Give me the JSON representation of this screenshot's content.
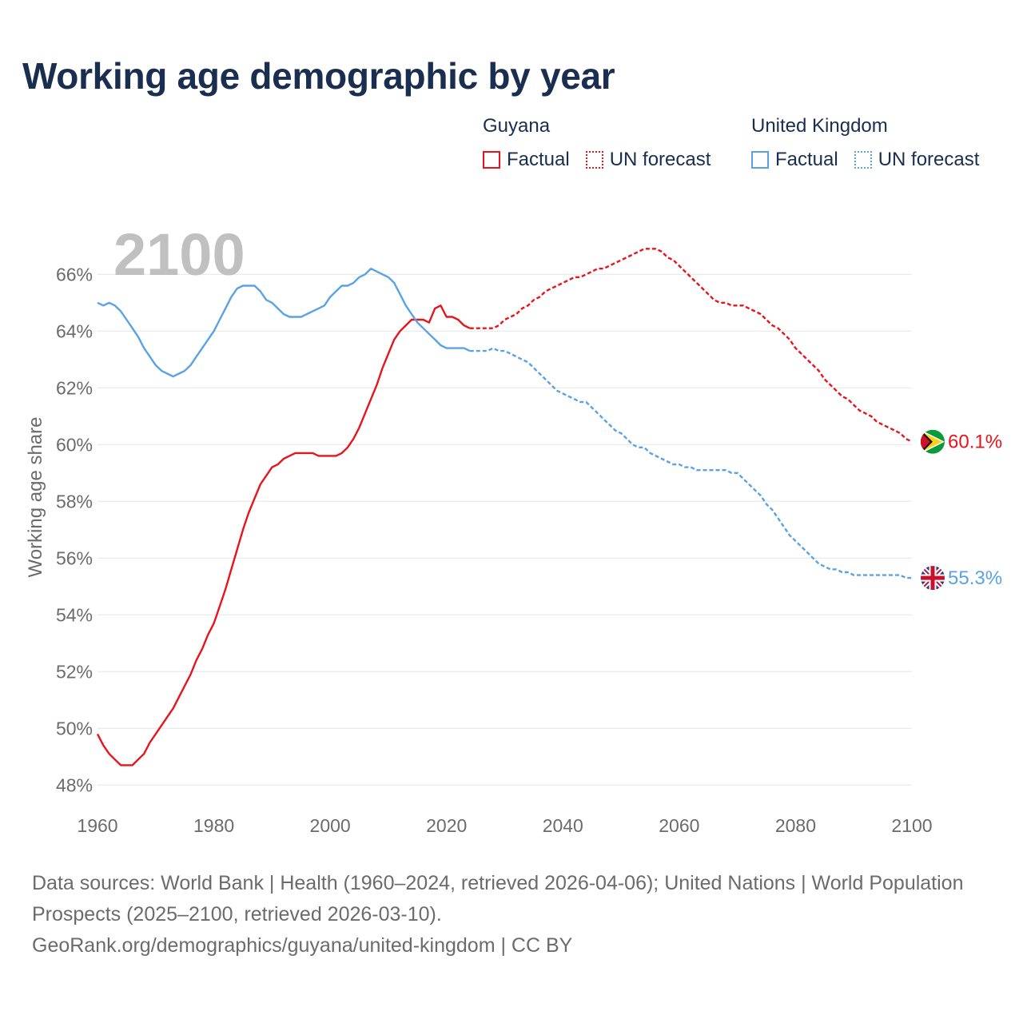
{
  "title": "Working age demographic by year",
  "legend": {
    "groups": [
      {
        "name": "Guyana",
        "factual_label": "Factual",
        "forecast_label": "UN forecast",
        "color": "#e8141c"
      },
      {
        "name": "United Kingdom",
        "factual_label": "Factual",
        "forecast_label": "UN forecast",
        "color": "#5aa3e3"
      }
    ]
  },
  "chart_data": {
    "type": "line",
    "ylabel": "Working age share",
    "xlabel": "",
    "year_overlay": "2100",
    "xlim": [
      1960,
      2100
    ],
    "ylim": [
      47.5,
      67.5
    ],
    "x_ticks": [
      "1960",
      "1980",
      "2000",
      "2020",
      "2040",
      "2060",
      "2080",
      "2100"
    ],
    "y_ticks": [
      "48%",
      "50%",
      "52%",
      "54%",
      "56%",
      "58%",
      "60%",
      "62%",
      "64%",
      "66%"
    ],
    "grid": true,
    "factual_end_year": 2024,
    "series": [
      {
        "name": "Guyana",
        "color": "#e8141c",
        "end_label": "60.1%",
        "flag": "guyana-flag-icon",
        "points": [
          [
            1960,
            49.8
          ],
          [
            1961,
            49.4
          ],
          [
            1962,
            49.1
          ],
          [
            1963,
            48.9
          ],
          [
            1964,
            48.7
          ],
          [
            1965,
            48.7
          ],
          [
            1966,
            48.7
          ],
          [
            1967,
            48.9
          ],
          [
            1968,
            49.1
          ],
          [
            1969,
            49.5
          ],
          [
            1970,
            49.8
          ],
          [
            1971,
            50.1
          ],
          [
            1972,
            50.4
          ],
          [
            1973,
            50.7
          ],
          [
            1974,
            51.1
          ],
          [
            1975,
            51.5
          ],
          [
            1976,
            51.9
          ],
          [
            1977,
            52.4
          ],
          [
            1978,
            52.8
          ],
          [
            1979,
            53.3
          ],
          [
            1980,
            53.7
          ],
          [
            1981,
            54.3
          ],
          [
            1982,
            54.9
          ],
          [
            1983,
            55.6
          ],
          [
            1984,
            56.3
          ],
          [
            1985,
            57.0
          ],
          [
            1986,
            57.6
          ],
          [
            1987,
            58.1
          ],
          [
            1988,
            58.6
          ],
          [
            1989,
            58.9
          ],
          [
            1990,
            59.2
          ],
          [
            1991,
            59.3
          ],
          [
            1992,
            59.5
          ],
          [
            1993,
            59.6
          ],
          [
            1994,
            59.7
          ],
          [
            1995,
            59.7
          ],
          [
            1996,
            59.7
          ],
          [
            1997,
            59.7
          ],
          [
            1998,
            59.6
          ],
          [
            1999,
            59.6
          ],
          [
            2000,
            59.6
          ],
          [
            2001,
            59.6
          ],
          [
            2002,
            59.7
          ],
          [
            2003,
            59.9
          ],
          [
            2004,
            60.2
          ],
          [
            2005,
            60.6
          ],
          [
            2006,
            61.1
          ],
          [
            2007,
            61.6
          ],
          [
            2008,
            62.1
          ],
          [
            2009,
            62.7
          ],
          [
            2010,
            63.2
          ],
          [
            2011,
            63.7
          ],
          [
            2012,
            64.0
          ],
          [
            2013,
            64.2
          ],
          [
            2014,
            64.4
          ],
          [
            2015,
            64.4
          ],
          [
            2016,
            64.4
          ],
          [
            2017,
            64.3
          ],
          [
            2018,
            64.8
          ],
          [
            2019,
            64.9
          ],
          [
            2020,
            64.5
          ],
          [
            2021,
            64.5
          ],
          [
            2022,
            64.4
          ],
          [
            2023,
            64.2
          ],
          [
            2024,
            64.1
          ],
          [
            2025,
            64.1
          ],
          [
            2026,
            64.1
          ],
          [
            2027,
            64.1
          ],
          [
            2028,
            64.1
          ],
          [
            2029,
            64.2
          ],
          [
            2030,
            64.4
          ],
          [
            2031,
            64.5
          ],
          [
            2032,
            64.6
          ],
          [
            2033,
            64.8
          ],
          [
            2034,
            64.9
          ],
          [
            2035,
            65.1
          ],
          [
            2036,
            65.2
          ],
          [
            2037,
            65.4
          ],
          [
            2038,
            65.5
          ],
          [
            2039,
            65.6
          ],
          [
            2040,
            65.7
          ],
          [
            2041,
            65.8
          ],
          [
            2042,
            65.9
          ],
          [
            2043,
            65.9
          ],
          [
            2044,
            66.0
          ],
          [
            2045,
            66.1
          ],
          [
            2046,
            66.2
          ],
          [
            2047,
            66.2
          ],
          [
            2048,
            66.3
          ],
          [
            2049,
            66.4
          ],
          [
            2050,
            66.5
          ],
          [
            2051,
            66.6
          ],
          [
            2052,
            66.7
          ],
          [
            2053,
            66.8
          ],
          [
            2054,
            66.9
          ],
          [
            2055,
            66.9
          ],
          [
            2056,
            66.9
          ],
          [
            2057,
            66.8
          ],
          [
            2058,
            66.6
          ],
          [
            2059,
            66.5
          ],
          [
            2060,
            66.3
          ],
          [
            2061,
            66.1
          ],
          [
            2062,
            65.9
          ],
          [
            2063,
            65.7
          ],
          [
            2064,
            65.5
          ],
          [
            2065,
            65.3
          ],
          [
            2066,
            65.1
          ],
          [
            2067,
            65.0
          ],
          [
            2068,
            65.0
          ],
          [
            2069,
            64.9
          ],
          [
            2070,
            64.9
          ],
          [
            2071,
            64.9
          ],
          [
            2072,
            64.8
          ],
          [
            2073,
            64.7
          ],
          [
            2074,
            64.6
          ],
          [
            2075,
            64.4
          ],
          [
            2076,
            64.2
          ],
          [
            2077,
            64.1
          ],
          [
            2078,
            63.9
          ],
          [
            2079,
            63.7
          ],
          [
            2080,
            63.4
          ],
          [
            2081,
            63.2
          ],
          [
            2082,
            63.0
          ],
          [
            2083,
            62.8
          ],
          [
            2084,
            62.6
          ],
          [
            2085,
            62.3
          ],
          [
            2086,
            62.1
          ],
          [
            2087,
            61.9
          ],
          [
            2088,
            61.7
          ],
          [
            2089,
            61.6
          ],
          [
            2090,
            61.4
          ],
          [
            2091,
            61.2
          ],
          [
            2092,
            61.1
          ],
          [
            2093,
            61.0
          ],
          [
            2094,
            60.8
          ],
          [
            2095,
            60.7
          ],
          [
            2096,
            60.6
          ],
          [
            2097,
            60.5
          ],
          [
            2098,
            60.4
          ],
          [
            2099,
            60.2
          ],
          [
            2100,
            60.1
          ]
        ]
      },
      {
        "name": "United Kingdom",
        "color": "#5aa3e3",
        "end_label": "55.3%",
        "flag": "uk-flag-icon",
        "points": [
          [
            1960,
            65.0
          ],
          [
            1961,
            64.9
          ],
          [
            1962,
            65.0
          ],
          [
            1963,
            64.9
          ],
          [
            1964,
            64.7
          ],
          [
            1965,
            64.4
          ],
          [
            1966,
            64.1
          ],
          [
            1967,
            63.8
          ],
          [
            1968,
            63.4
          ],
          [
            1969,
            63.1
          ],
          [
            1970,
            62.8
          ],
          [
            1971,
            62.6
          ],
          [
            1972,
            62.5
          ],
          [
            1973,
            62.4
          ],
          [
            1974,
            62.5
          ],
          [
            1975,
            62.6
          ],
          [
            1976,
            62.8
          ],
          [
            1977,
            63.1
          ],
          [
            1978,
            63.4
          ],
          [
            1979,
            63.7
          ],
          [
            1980,
            64.0
          ],
          [
            1981,
            64.4
          ],
          [
            1982,
            64.8
          ],
          [
            1983,
            65.2
          ],
          [
            1984,
            65.5
          ],
          [
            1985,
            65.6
          ],
          [
            1986,
            65.6
          ],
          [
            1987,
            65.6
          ],
          [
            1988,
            65.4
          ],
          [
            1989,
            65.1
          ],
          [
            1990,
            65.0
          ],
          [
            1991,
            64.8
          ],
          [
            1992,
            64.6
          ],
          [
            1993,
            64.5
          ],
          [
            1994,
            64.5
          ],
          [
            1995,
            64.5
          ],
          [
            1996,
            64.6
          ],
          [
            1997,
            64.7
          ],
          [
            1998,
            64.8
          ],
          [
            1999,
            64.9
          ],
          [
            2000,
            65.2
          ],
          [
            2001,
            65.4
          ],
          [
            2002,
            65.6
          ],
          [
            2003,
            65.6
          ],
          [
            2004,
            65.7
          ],
          [
            2005,
            65.9
          ],
          [
            2006,
            66.0
          ],
          [
            2007,
            66.2
          ],
          [
            2008,
            66.1
          ],
          [
            2009,
            66.0
          ],
          [
            2010,
            65.9
          ],
          [
            2011,
            65.7
          ],
          [
            2012,
            65.3
          ],
          [
            2013,
            64.9
          ],
          [
            2014,
            64.6
          ],
          [
            2015,
            64.3
          ],
          [
            2016,
            64.1
          ],
          [
            2017,
            63.9
          ],
          [
            2018,
            63.7
          ],
          [
            2019,
            63.5
          ],
          [
            2020,
            63.4
          ],
          [
            2021,
            63.4
          ],
          [
            2022,
            63.4
          ],
          [
            2023,
            63.4
          ],
          [
            2024,
            63.3
          ],
          [
            2025,
            63.3
          ],
          [
            2026,
            63.3
          ],
          [
            2027,
            63.3
          ],
          [
            2028,
            63.4
          ],
          [
            2029,
            63.3
          ],
          [
            2030,
            63.3
          ],
          [
            2031,
            63.2
          ],
          [
            2032,
            63.1
          ],
          [
            2033,
            63.0
          ],
          [
            2034,
            62.9
          ],
          [
            2035,
            62.7
          ],
          [
            2036,
            62.5
          ],
          [
            2037,
            62.3
          ],
          [
            2038,
            62.1
          ],
          [
            2039,
            61.9
          ],
          [
            2040,
            61.8
          ],
          [
            2041,
            61.7
          ],
          [
            2042,
            61.6
          ],
          [
            2043,
            61.5
          ],
          [
            2044,
            61.5
          ],
          [
            2045,
            61.3
          ],
          [
            2046,
            61.1
          ],
          [
            2047,
            60.9
          ],
          [
            2048,
            60.7
          ],
          [
            2049,
            60.5
          ],
          [
            2050,
            60.4
          ],
          [
            2051,
            60.2
          ],
          [
            2052,
            60.0
          ],
          [
            2053,
            59.9
          ],
          [
            2054,
            59.9
          ],
          [
            2055,
            59.7
          ],
          [
            2056,
            59.6
          ],
          [
            2057,
            59.5
          ],
          [
            2058,
            59.4
          ],
          [
            2059,
            59.3
          ],
          [
            2060,
            59.3
          ],
          [
            2061,
            59.2
          ],
          [
            2062,
            59.2
          ],
          [
            2063,
            59.1
          ],
          [
            2064,
            59.1
          ],
          [
            2065,
            59.1
          ],
          [
            2066,
            59.1
          ],
          [
            2067,
            59.1
          ],
          [
            2068,
            59.1
          ],
          [
            2069,
            59.0
          ],
          [
            2070,
            59.0
          ],
          [
            2071,
            58.8
          ],
          [
            2072,
            58.6
          ],
          [
            2073,
            58.4
          ],
          [
            2074,
            58.2
          ],
          [
            2075,
            57.9
          ],
          [
            2076,
            57.7
          ],
          [
            2077,
            57.4
          ],
          [
            2078,
            57.1
          ],
          [
            2079,
            56.8
          ],
          [
            2080,
            56.6
          ],
          [
            2081,
            56.4
          ],
          [
            2082,
            56.2
          ],
          [
            2083,
            56.0
          ],
          [
            2084,
            55.8
          ],
          [
            2085,
            55.7
          ],
          [
            2086,
            55.6
          ],
          [
            2087,
            55.6
          ],
          [
            2088,
            55.5
          ],
          [
            2089,
            55.5
          ],
          [
            2090,
            55.4
          ],
          [
            2091,
            55.4
          ],
          [
            2092,
            55.4
          ],
          [
            2093,
            55.4
          ],
          [
            2094,
            55.4
          ],
          [
            2095,
            55.4
          ],
          [
            2096,
            55.4
          ],
          [
            2097,
            55.4
          ],
          [
            2098,
            55.4
          ],
          [
            2099,
            55.3
          ],
          [
            2100,
            55.3
          ]
        ]
      }
    ]
  },
  "footer": {
    "line1": "Data sources: World Bank | Health (1960–2024, retrieved 2026-04-06); United Nations | World Population Prospects (2025–2100, retrieved 2026-03-10).",
    "line2": "GeoRank.org/demographics/guyana/united-kingdom | CC BY"
  }
}
